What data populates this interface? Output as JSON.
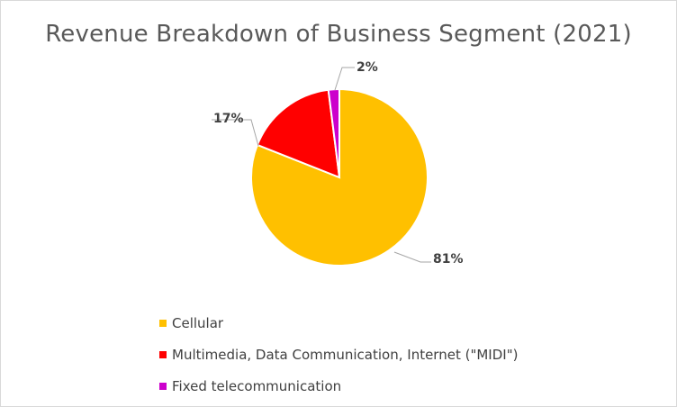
{
  "chart_data": {
    "type": "pie",
    "title": "Revenue Breakdown of Business Segment (2021)",
    "categories": [
      "Cellular",
      "Multimedia, Data Communication, Internet (\"MIDI\")",
      "Fixed telecommunication"
    ],
    "values": [
      81,
      17,
      2
    ],
    "labels": [
      "81%",
      "17%",
      "2%"
    ],
    "colors": [
      "#FFC000",
      "#FF0000",
      "#CC00CC"
    ],
    "legend_position": "bottom-left",
    "start_angle_deg": 0,
    "direction": "clockwise"
  }
}
